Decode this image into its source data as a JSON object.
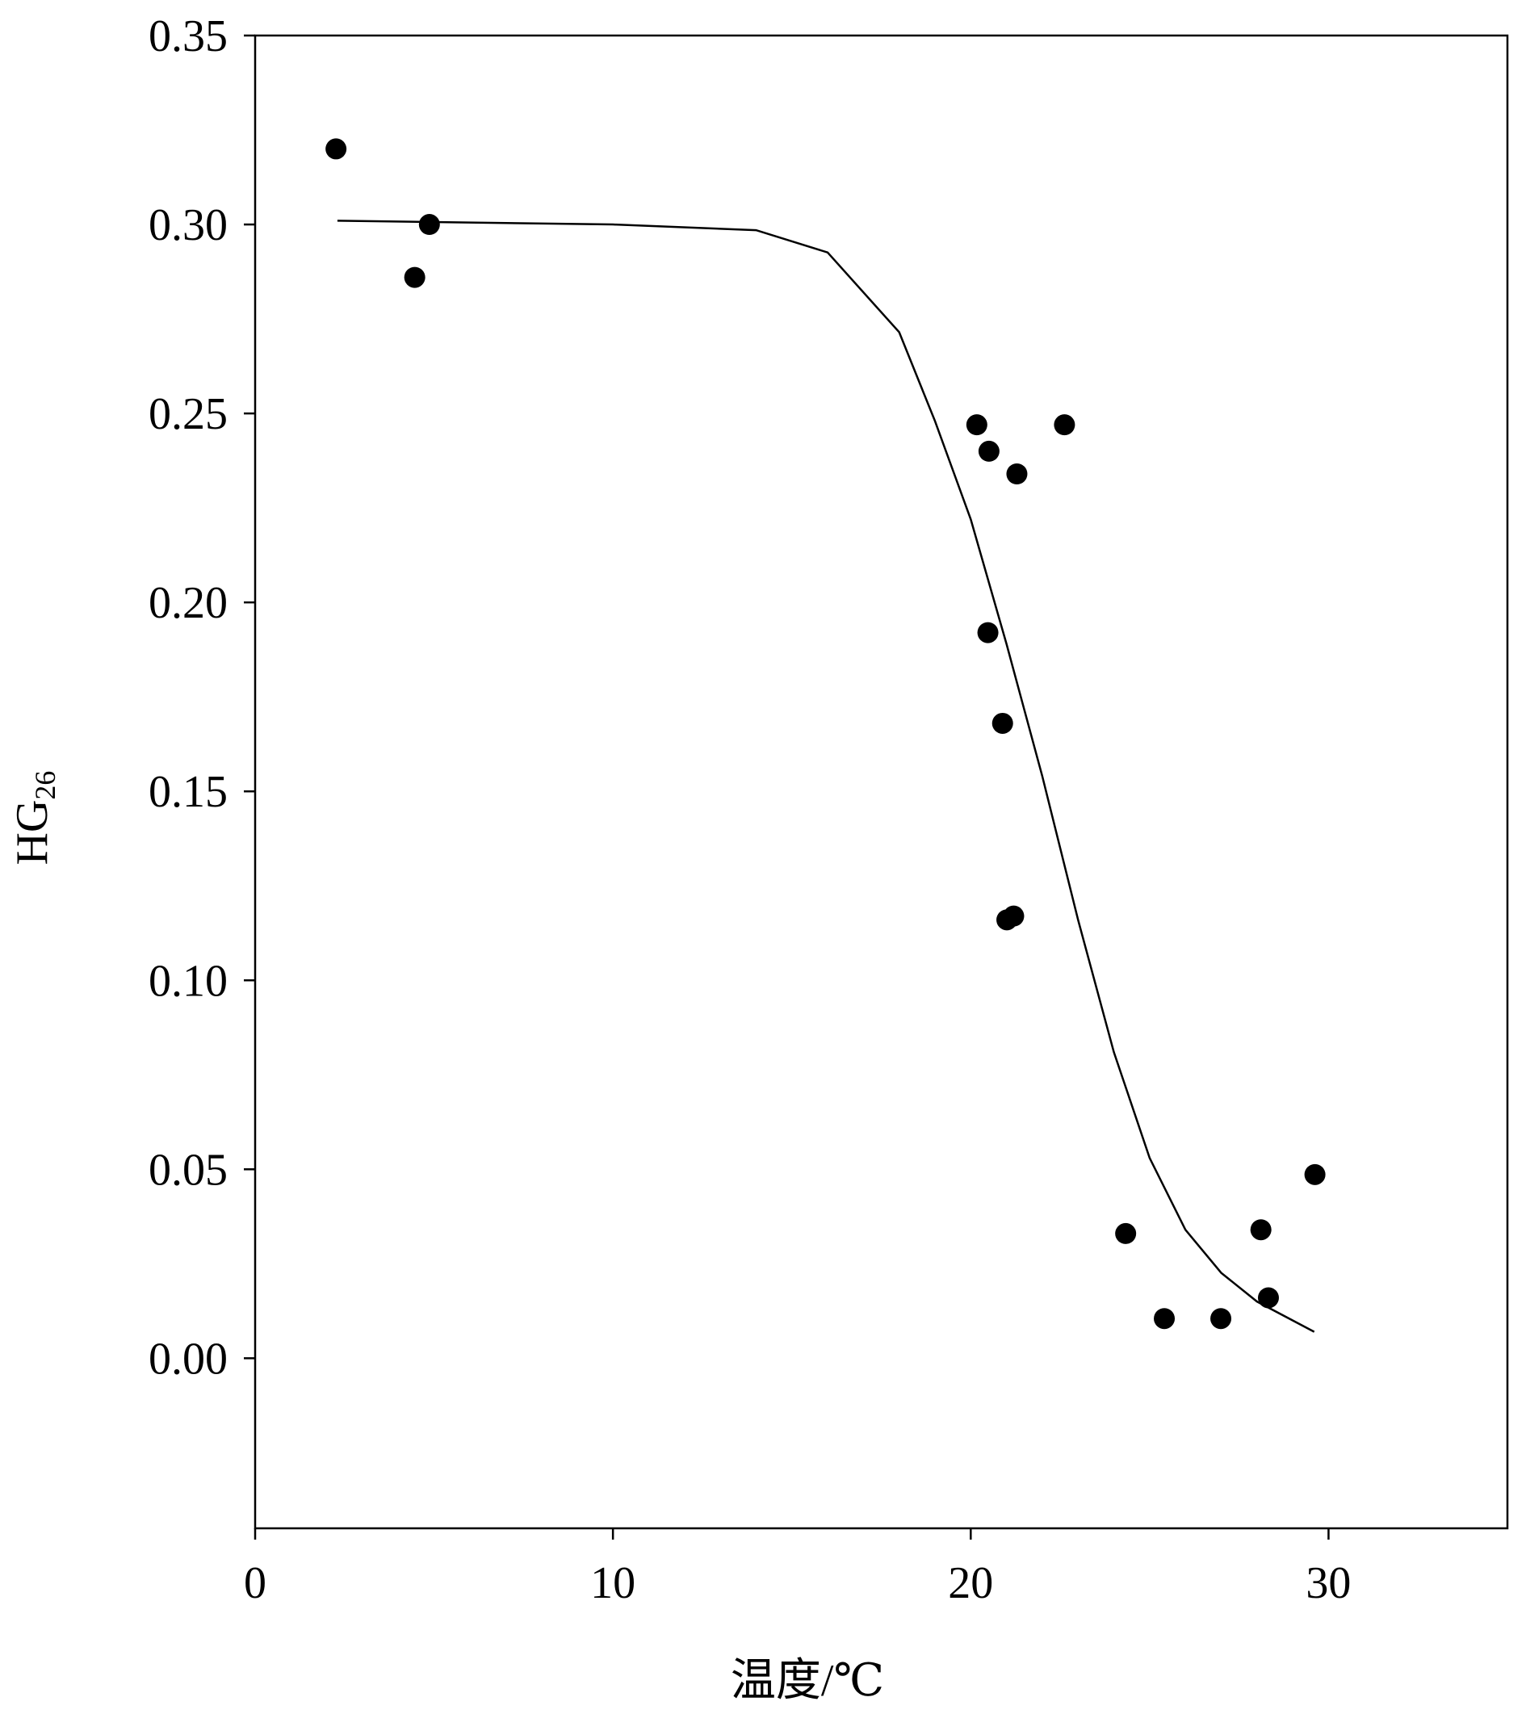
{
  "chart_data": {
    "type": "scatter",
    "x_label": "温度/℃",
    "y_label": "HG",
    "y_label_subscript": "26",
    "color": "#000000",
    "xlim": [
      0,
      35
    ],
    "xticks": [
      0,
      10,
      20,
      30
    ],
    "ylim": [
      -0.045,
      0.35
    ],
    "yticks": [
      {
        "value": 0,
        "label": "0.00"
      },
      {
        "value": 0.05,
        "label": "0.05"
      },
      {
        "value": 0.1,
        "label": "0.10"
      },
      {
        "value": 0.15,
        "label": "0.15"
      },
      {
        "value": 0.2,
        "label": "0.20"
      },
      {
        "value": 0.25,
        "label": "0.25"
      },
      {
        "value": 0.3,
        "label": "0.30"
      },
      {
        "value": 0.35,
        "label": "0.35"
      }
    ],
    "points": {
      "x": [
        2.26,
        4.87,
        4.46,
        20.17,
        22.62,
        20.51,
        21.29,
        20.48,
        20.89,
        21.01,
        21.2,
        24.33,
        25.41,
        26.99,
        28.11,
        28.32,
        29.62
      ],
      "values": [
        0.32,
        0.3,
        0.286,
        0.247,
        0.247,
        0.24,
        0.234,
        0.192,
        0.168,
        0.116,
        0.117,
        0.033,
        0.0105,
        0.0105,
        0.034,
        0.016,
        0.0486
      ]
    },
    "fit": {
      "x": [
        2.3,
        10,
        14,
        16,
        18,
        19,
        20,
        21,
        22,
        23,
        24,
        25,
        26,
        27,
        28,
        29.6
      ],
      "values": [
        0.301,
        0.3,
        0.2985,
        0.2926,
        0.2715,
        0.248,
        0.222,
        0.189,
        0.154,
        0.116,
        0.081,
        0.053,
        0.034,
        0.0226,
        0.015,
        0.007
      ]
    }
  }
}
